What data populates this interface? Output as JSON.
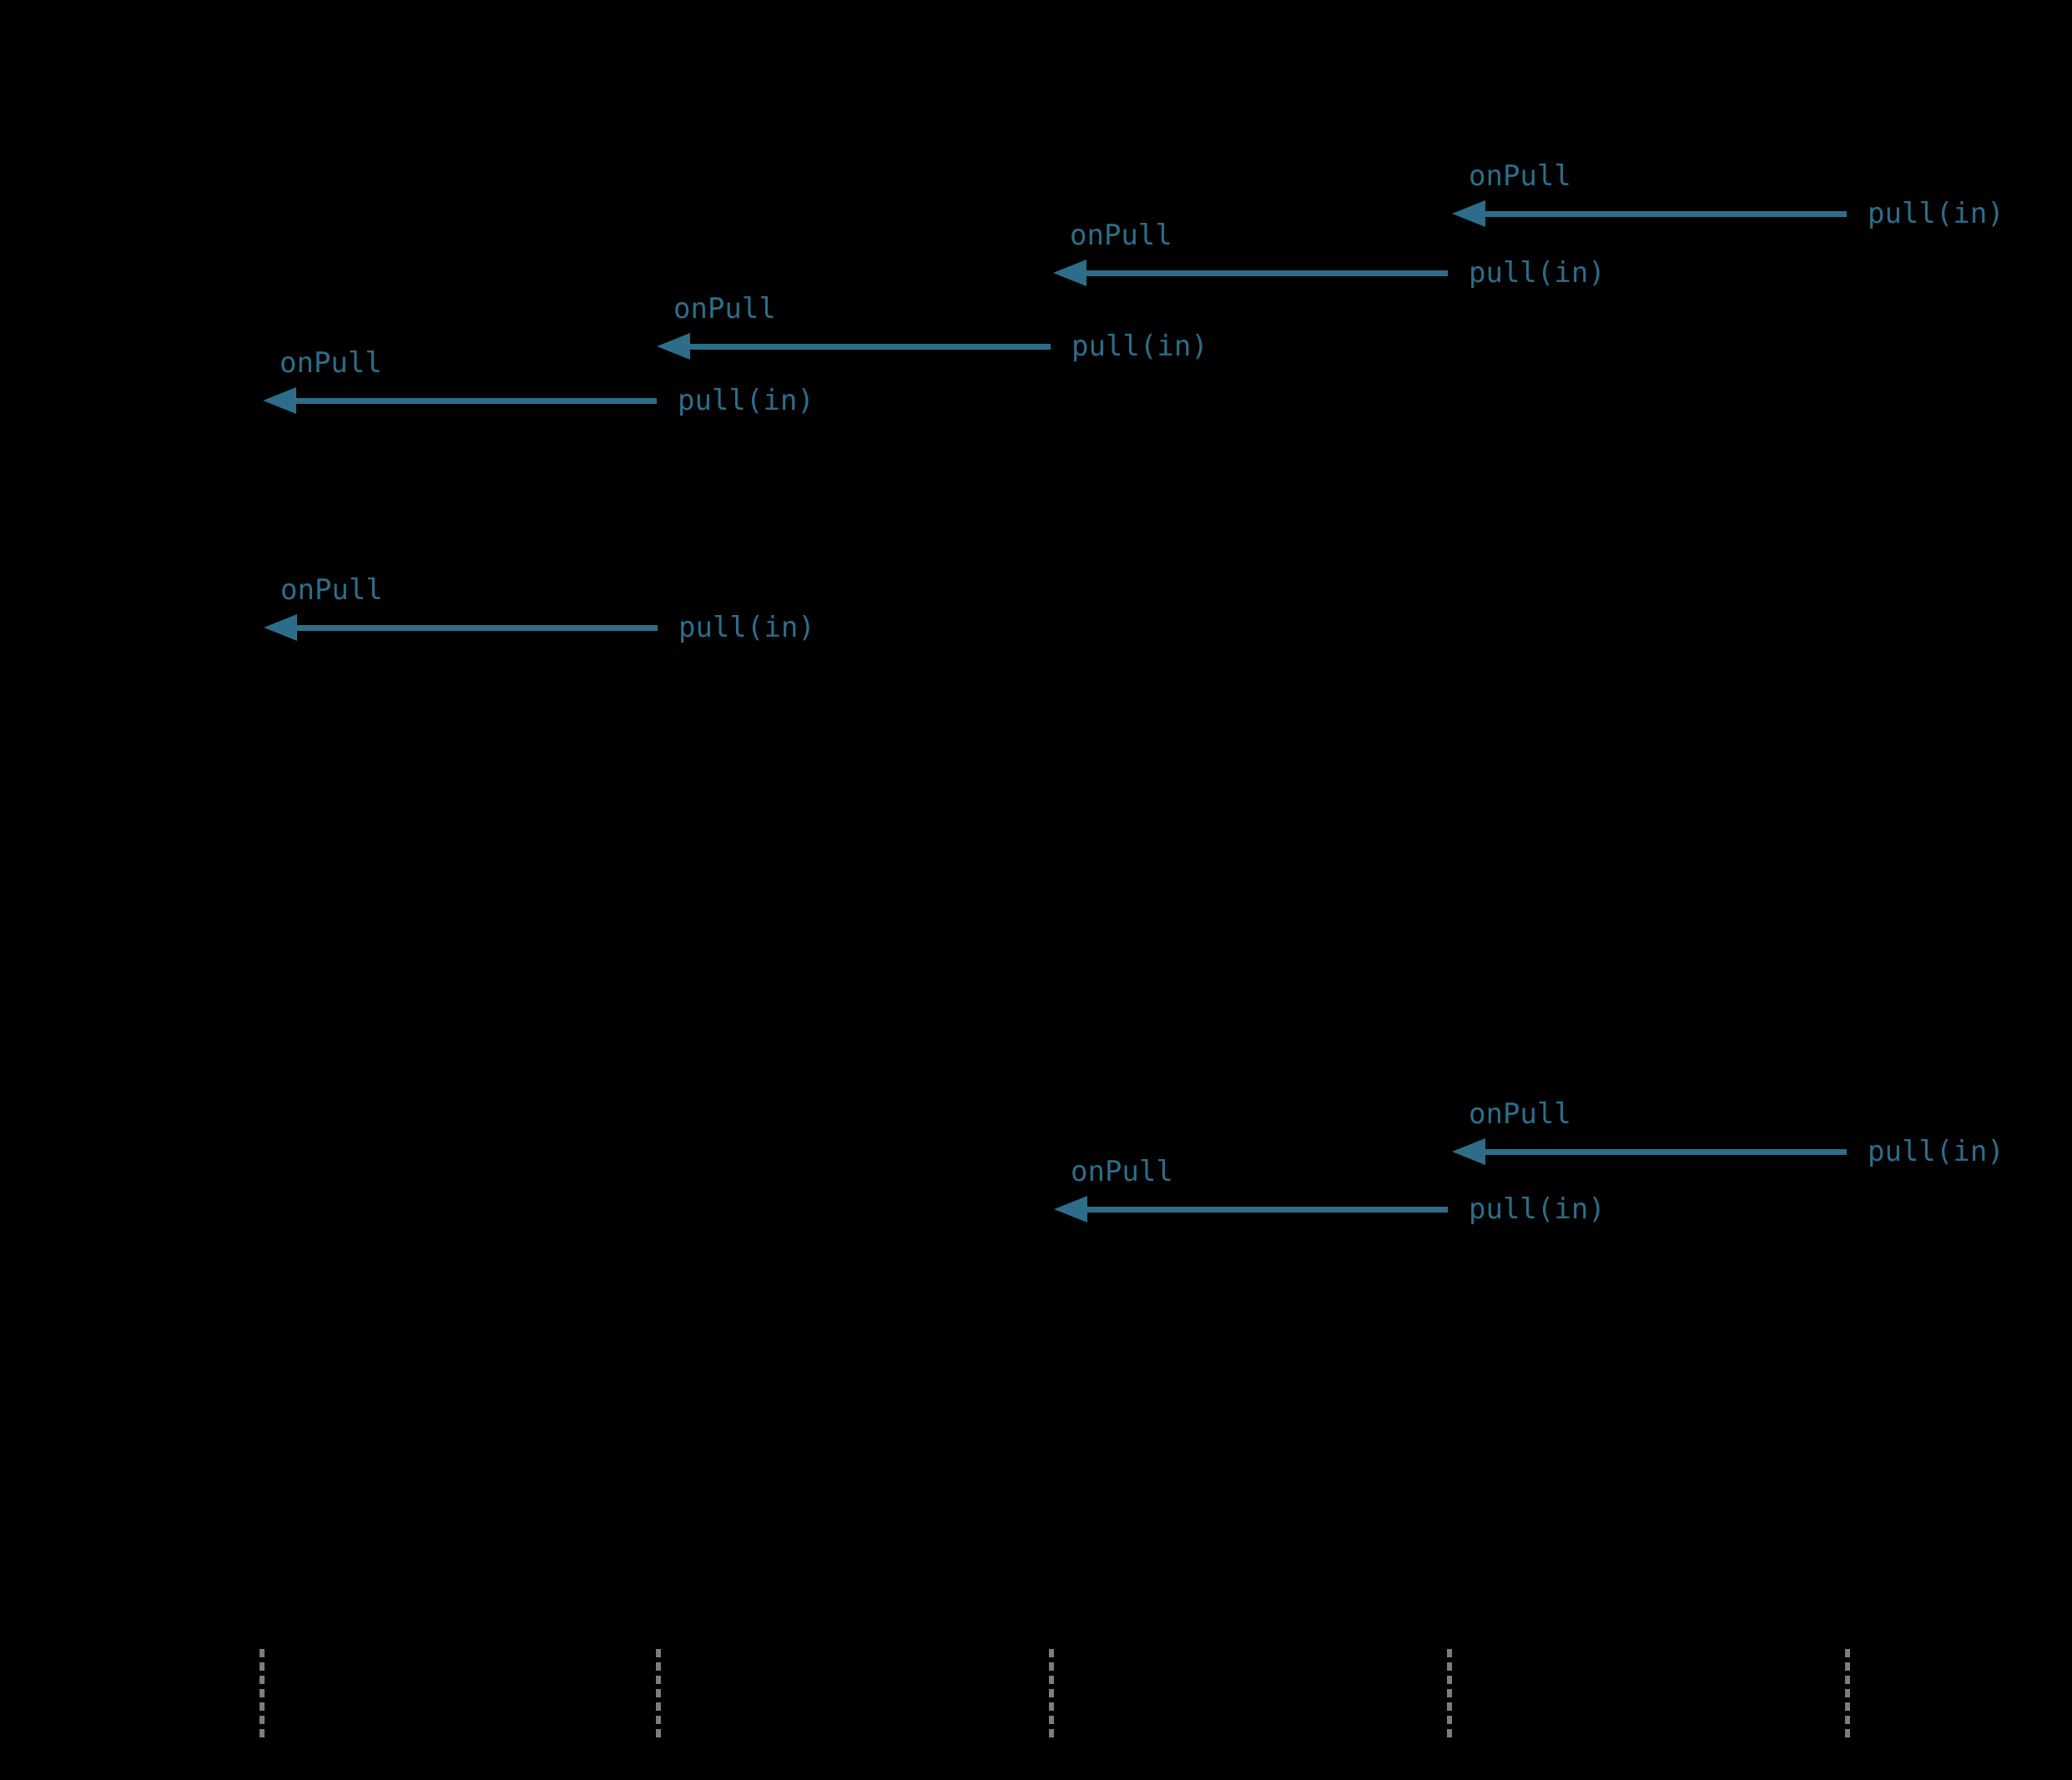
{
  "colors": {
    "accent": "#2d6d89",
    "lifeline": "#7d7d7d",
    "background": "#000000"
  },
  "diagram": {
    "type": "sequence-diagram",
    "arrows": [
      {
        "onpull": "onPull",
        "pull": "pull(in)"
      },
      {
        "onpull": "onPull",
        "pull": "pull(in)"
      },
      {
        "onpull": "onPull",
        "pull": "pull(in)"
      },
      {
        "onpull": "onPull",
        "pull": "pull(in)"
      },
      {
        "onpull": "onPull",
        "pull": "pull(in)"
      },
      {
        "onpull": "onPull",
        "pull": "pull(in)"
      },
      {
        "onpull": "onPull",
        "pull": "pull(in)"
      }
    ],
    "lifeline_count": 5
  }
}
